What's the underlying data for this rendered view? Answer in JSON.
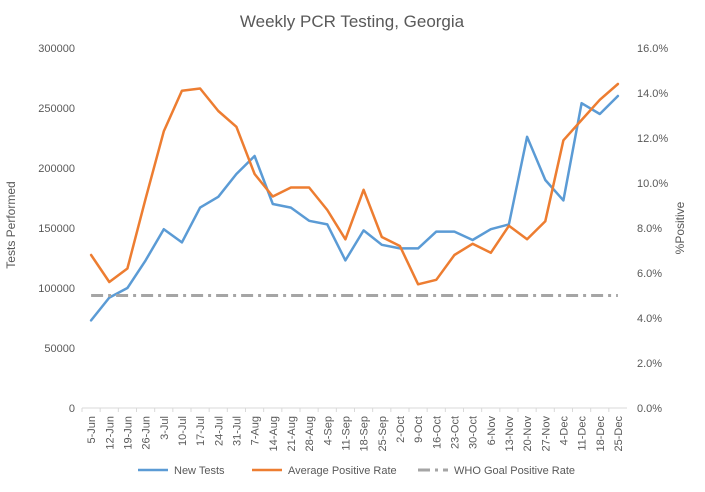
{
  "chart_data": {
    "type": "line",
    "title": "Weekly PCR Testing, Georgia",
    "ylabel": "Tests Performed",
    "y2label": "%Positive",
    "ylim": [
      0,
      300000
    ],
    "y2lim": [
      0,
      16
    ],
    "y_ticks": [
      "0",
      "50000",
      "100000",
      "150000",
      "200000",
      "250000",
      "300000"
    ],
    "y2_ticks": [
      "0.0%",
      "2.0%",
      "4.0%",
      "6.0%",
      "8.0%",
      "10.0%",
      "12.0%",
      "14.0%",
      "16.0%"
    ],
    "categories": [
      "5-Jun",
      "12-Jun",
      "19-Jun",
      "26-Jun",
      "3-Jul",
      "10-Jul",
      "17-Jul",
      "24-Jul",
      "31-Jul",
      "7-Aug",
      "14-Aug",
      "21-Aug",
      "28-Aug",
      "4-Sep",
      "11-Sep",
      "18-Sep",
      "25-Sep",
      "2-Oct",
      "9-Oct",
      "16-Oct",
      "23-Oct",
      "30-Oct",
      "6-Nov",
      "13-Nov",
      "20-Nov",
      "27-Nov",
      "4-Dec",
      "11-Dec",
      "18-Dec",
      "25-Dec"
    ],
    "series": [
      {
        "name": "New Tests",
        "axis": "left",
        "color": "#5b9bd5",
        "values": [
          73000,
          92000,
          100000,
          123000,
          149000,
          138000,
          167000,
          176000,
          195000,
          210000,
          170000,
          167000,
          156000,
          153000,
          123000,
          148000,
          136000,
          133000,
          133000,
          147000,
          147000,
          140000,
          149000,
          153000,
          226000,
          190000,
          173000,
          254000,
          245000,
          260000
        ]
      },
      {
        "name": "Average Positive Rate",
        "axis": "right",
        "color": "#ed7d31",
        "values": [
          6.8,
          5.6,
          6.2,
          9.3,
          12.3,
          14.1,
          14.2,
          13.2,
          12.5,
          10.4,
          9.4,
          9.8,
          9.8,
          8.8,
          7.5,
          9.7,
          7.6,
          7.2,
          5.5,
          5.7,
          6.8,
          7.3,
          6.9,
          8.1,
          7.5,
          8.3,
          11.9,
          12.8,
          13.7,
          14.4
        ]
      },
      {
        "name": "WHO Goal Positive Rate",
        "axis": "right",
        "color": "#a5a5a5",
        "dashed": true,
        "values": [
          5,
          5,
          5,
          5,
          5,
          5,
          5,
          5,
          5,
          5,
          5,
          5,
          5,
          5,
          5,
          5,
          5,
          5,
          5,
          5,
          5,
          5,
          5,
          5,
          5,
          5,
          5,
          5,
          5,
          5
        ]
      }
    ],
    "legend_position": "bottom",
    "grid": false
  }
}
